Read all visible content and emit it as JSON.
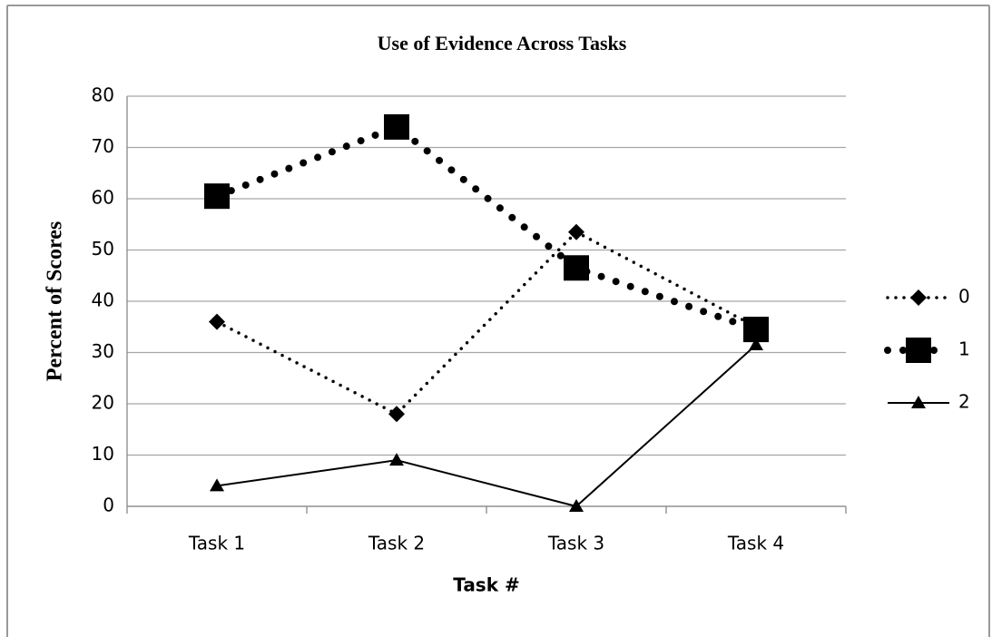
{
  "chart_data": {
    "type": "line",
    "title": "Use of Evidence Across Tasks",
    "x_label": "Task #",
    "y_label": "Percent of Scores",
    "categories": [
      "Task 1",
      "Task 2",
      "Task 3",
      "Task 4"
    ],
    "series": [
      {
        "name": "0",
        "color": "#000000",
        "marker": "diamond",
        "line_style": "dotted",
        "values": [
          36,
          18,
          53.5,
          35
        ]
      },
      {
        "name": "1",
        "color": "#000000",
        "marker": "square",
        "line_style": "round-dotted",
        "values": [
          60.5,
          74,
          46.5,
          34.5
        ]
      },
      {
        "name": "2",
        "color": "#000000",
        "marker": "triangle",
        "line_style": "solid",
        "values": [
          4,
          9,
          0,
          31.5
        ]
      }
    ],
    "ylim": [
      0,
      80
    ],
    "yticks": [
      0,
      10,
      20,
      30,
      40,
      50,
      60,
      70,
      80
    ],
    "grid": true,
    "legend": "right"
  }
}
